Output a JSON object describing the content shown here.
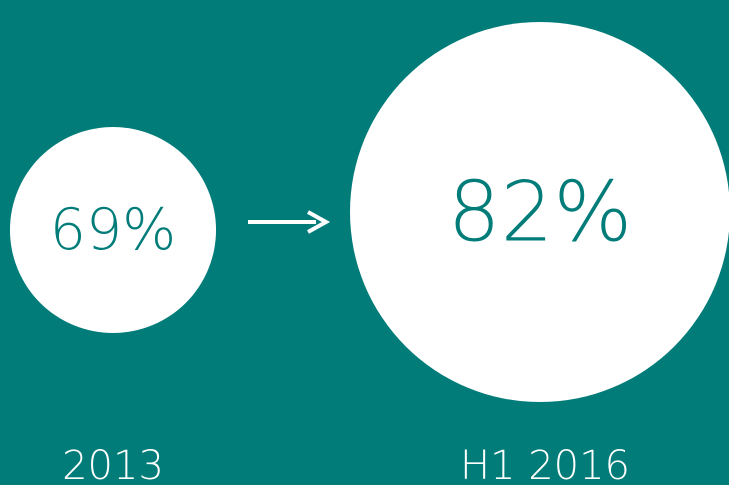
{
  "chart_data": {
    "type": "circles",
    "categories": [
      "2013",
      "H1 2016"
    ],
    "values": [
      69,
      82
    ],
    "value_labels": [
      "69%",
      "82%"
    ],
    "color": "#ffffff"
  }
}
